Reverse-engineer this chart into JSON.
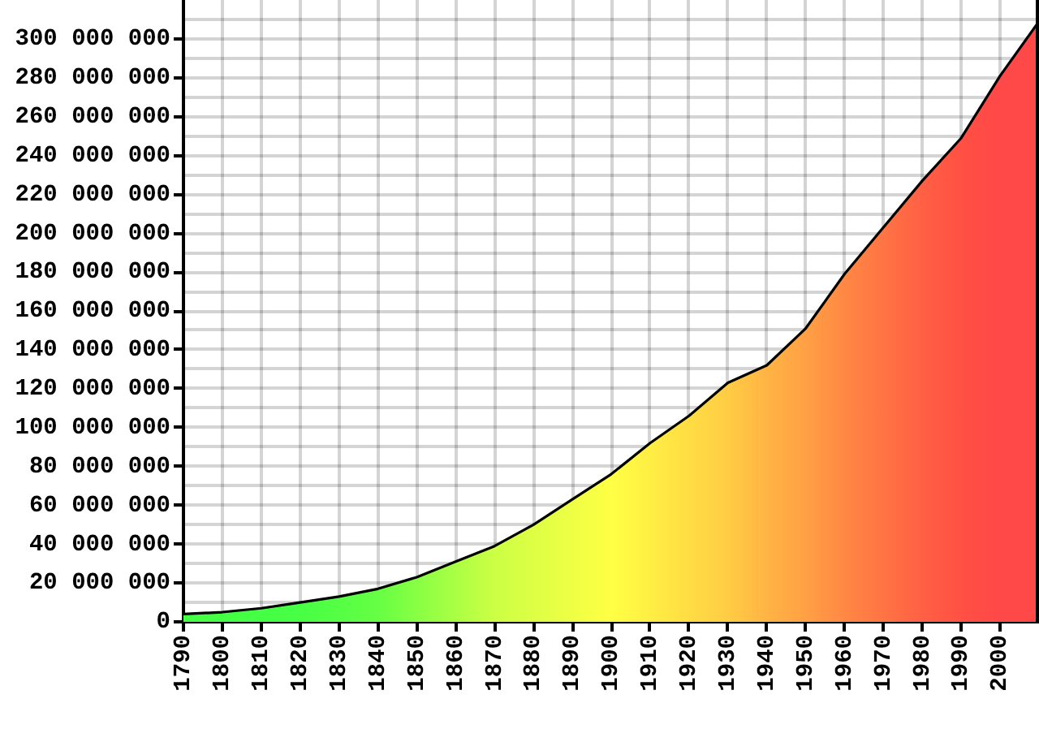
{
  "chart_data": {
    "type": "area",
    "x": [
      1790,
      1800,
      1810,
      1820,
      1830,
      1840,
      1850,
      1860,
      1870,
      1880,
      1890,
      1900,
      1910,
      1920,
      1930,
      1940,
      1950,
      1960,
      1970,
      1980,
      1990,
      2000,
      2010
    ],
    "series": [
      {
        "color": "#000000",
        "colors": [
          "#44ff44",
          "#44ff44",
          "#44ff44",
          "#48ff44",
          "#55ff44",
          "#66ff44",
          "#88ff44",
          "#aaff44",
          "#ccff44",
          "#ddff44",
          "#eeff44",
          "#ffff44",
          "#ffee44",
          "#ffdd44",
          "#ffcc44",
          "#ffb444",
          "#ffa044",
          "#ff8844",
          "#ff7444",
          "#ff6044",
          "#ff5044",
          "#ff4848",
          "#ff4848"
        ],
        "values": [
          4000000,
          5000000,
          7000000,
          10000000,
          13000000,
          17000000,
          23000000,
          31000000,
          39000000,
          50000000,
          63000000,
          76000000,
          92000000,
          106000000,
          123000000,
          132000000,
          151000000,
          179000000,
          203000000,
          227000000,
          249000000,
          281000000,
          309000000
        ]
      }
    ],
    "xlim": [
      1790,
      2010
    ],
    "xticks": [
      1790,
      1800,
      1810,
      1820,
      1830,
      1840,
      1850,
      1860,
      1870,
      1880,
      1890,
      1900,
      1910,
      1920,
      1930,
      1940,
      1950,
      1960,
      1970,
      1980,
      1990,
      2000
    ],
    "ylim": [
      0,
      320000000
    ],
    "yticks": [
      0,
      {
        "value": 10000000,
        "label": null
      },
      {
        "value": 20000000,
        "label": "20 000 000"
      },
      {
        "value": 30000000,
        "label": null
      },
      {
        "value": 40000000,
        "label": "40 000 000"
      },
      {
        "value": 50000000,
        "label": null
      },
      {
        "value": 60000000,
        "label": "60 000 000"
      },
      {
        "value": 70000000,
        "label": null
      },
      {
        "value": 80000000,
        "label": "80 000 000"
      },
      {
        "value": 90000000,
        "label": null
      },
      {
        "value": 100000000,
        "label": "100 000 000"
      },
      {
        "value": 110000000,
        "label": null
      },
      {
        "value": 120000000,
        "label": "120 000 000"
      },
      {
        "value": 130000000,
        "label": null
      },
      {
        "value": 140000000,
        "label": "140 000 000"
      },
      {
        "value": 150000000,
        "label": null
      },
      {
        "value": 160000000,
        "label": "160 000 000"
      },
      {
        "value": 170000000,
        "label": null
      },
      {
        "value": 180000000,
        "label": "180 000 000"
      },
      {
        "value": 190000000,
        "label": null
      },
      {
        "value": 200000000,
        "label": "200 000 000"
      },
      {
        "value": 210000000,
        "label": null
      },
      {
        "value": 220000000,
        "label": "220 000 000"
      },
      {
        "value": 230000000,
        "label": null
      },
      {
        "value": 240000000,
        "label": "240 000 000"
      },
      {
        "value": 250000000,
        "label": null
      },
      {
        "value": 260000000,
        "label": "260 000 000"
      },
      {
        "value": 270000000,
        "label": null
      },
      {
        "value": 280000000,
        "label": "280 000 000"
      },
      {
        "value": 290000000,
        "label": null
      },
      {
        "value": 300000000,
        "label": "300 000 000"
      },
      {
        "value": 310000000,
        "label": null
      }
    ],
    "grid": true,
    "marker": "none",
    "legend": false
  }
}
